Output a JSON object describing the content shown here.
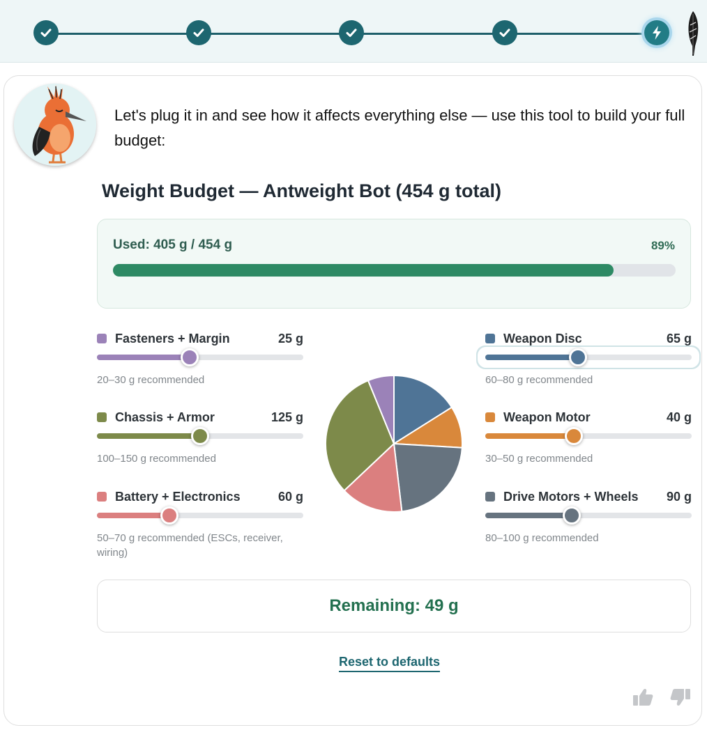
{
  "progress": {
    "steps": [
      {
        "state": "complete",
        "icon": "check-icon"
      },
      {
        "state": "complete",
        "icon": "check-icon"
      },
      {
        "state": "complete",
        "icon": "check-icon"
      },
      {
        "state": "complete",
        "icon": "check-icon"
      },
      {
        "state": "current",
        "icon": "lightning-icon"
      }
    ],
    "end_icon": "feather-icon"
  },
  "message": {
    "avatar_icon": "bird-mascot-icon",
    "text": "Let's plug it in and see how it affects everything else — use this tool to build your full budget:"
  },
  "budget": {
    "title": "Weight Budget — Antweight Bot (454 g total)",
    "total_g": 454,
    "used_g": 405,
    "used_label": "Used: 405 g / 454 g",
    "used_pct_label": "89%",
    "used_fraction": 0.89,
    "remaining_label": "Remaining: 49 g",
    "reset_label": "Reset to defaults"
  },
  "components": [
    {
      "key": "fasteners",
      "label": "Fasteners + Margin",
      "value_label": "25 g",
      "value": 25,
      "min": 20,
      "max": 30,
      "slider_fraction": 0.45,
      "color": "#9b82b8",
      "note": "20–30 g recommended"
    },
    {
      "key": "chassis",
      "label": "Chassis + Armor",
      "value_label": "125 g",
      "value": 125,
      "min": 100,
      "max": 150,
      "slider_fraction": 0.5,
      "color": "#7d8a4a",
      "note": "100–150 g recommended"
    },
    {
      "key": "battery",
      "label": "Battery + Electronics",
      "value_label": "60 g",
      "value": 60,
      "min": 50,
      "max": 70,
      "slider_fraction": 0.35,
      "color": "#db7f7f",
      "note": "50–70 g recommended (ESCs, receiver, wiring)"
    },
    {
      "key": "weapon-disc",
      "label": "Weapon Disc",
      "value_label": "65 g",
      "value": 65,
      "min": 60,
      "max": 80,
      "slider_fraction": 0.45,
      "color": "#4f7496",
      "note": "60–80 g recommended",
      "focused": true
    },
    {
      "key": "weapon-motor",
      "label": "Weapon Motor",
      "value_label": "40 g",
      "value": 40,
      "min": 30,
      "max": 50,
      "slider_fraction": 0.43,
      "color": "#d9883b",
      "note": "30–50 g recommended"
    },
    {
      "key": "drive",
      "label": "Drive Motors + Wheels",
      "value_label": "90 g",
      "value": 90,
      "min": 80,
      "max": 100,
      "slider_fraction": 0.42,
      "color": "#66737f",
      "note": "80–100 g recommended"
    }
  ],
  "chart_data": {
    "type": "pie",
    "slices": [
      {
        "name": "Weapon Disc",
        "value": 65,
        "color": "#4f7496"
      },
      {
        "name": "Weapon Motor",
        "value": 40,
        "color": "#d9883b"
      },
      {
        "name": "Drive Motors + Wheels",
        "value": 90,
        "color": "#66737f"
      },
      {
        "name": "Battery + Electronics",
        "value": 60,
        "color": "#db7f7f"
      },
      {
        "name": "Chassis + Armor",
        "value": 125,
        "color": "#7d8a4a"
      },
      {
        "name": "Fasteners + Margin",
        "value": 25,
        "color": "#9b82b8"
      }
    ]
  },
  "feedback": {
    "up_icon": "thumbs-up-icon",
    "down_icon": "thumbs-down-icon"
  }
}
